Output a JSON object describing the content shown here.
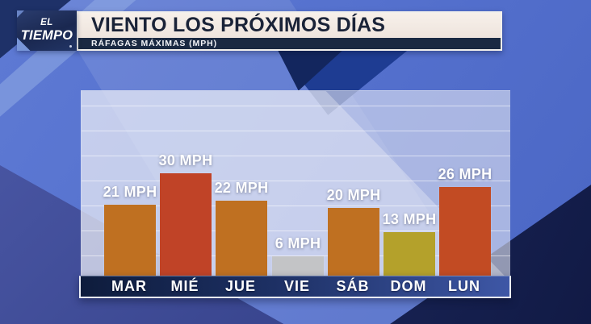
{
  "header": {
    "logo": {
      "line1": "EL",
      "line2": "TIEMPO"
    },
    "title": "VIENTO LOS PRÓXIMOS DÍAS",
    "subtitle": "RÁFAGAS MÁXIMAS (MPH)"
  },
  "chart_data": {
    "type": "bar",
    "title": "VIENTO LOS PRÓXIMOS DÍAS",
    "subtitle": "RÁFAGAS MÁXIMAS (MPH)",
    "unit": "MPH",
    "categories": [
      "MAR",
      "MIÉ",
      "JUE",
      "VIE",
      "SÁB",
      "DOM",
      "LUN"
    ],
    "values": [
      21,
      30,
      22,
      6,
      20,
      13,
      26
    ],
    "labels": [
      "21 MPH",
      "30 MPH",
      "22 MPH",
      "6 MPH",
      "20 MPH",
      "13 MPH",
      "26 MPH"
    ],
    "bar_colors": [
      "#bf7021",
      "#c04327",
      "#bf7021",
      "#c3c4c6",
      "#bf7021",
      "#b4a12b",
      "#c24b23"
    ],
    "ylim": [
      0,
      33
    ],
    "grid": true,
    "legend": false,
    "axis_band_colors": {
      "left": "#0e1c3c",
      "right": "#3e57a6"
    }
  },
  "colors": {
    "background_blue": "#5470cd",
    "dark_navy_triangle": "#111a45",
    "panel": "#c5cade",
    "title_bar_bg": "#f3eae3",
    "title_text": "#1a2338",
    "subtitle_bar_bg": "#1a2942",
    "label_text": "#ffffff"
  }
}
